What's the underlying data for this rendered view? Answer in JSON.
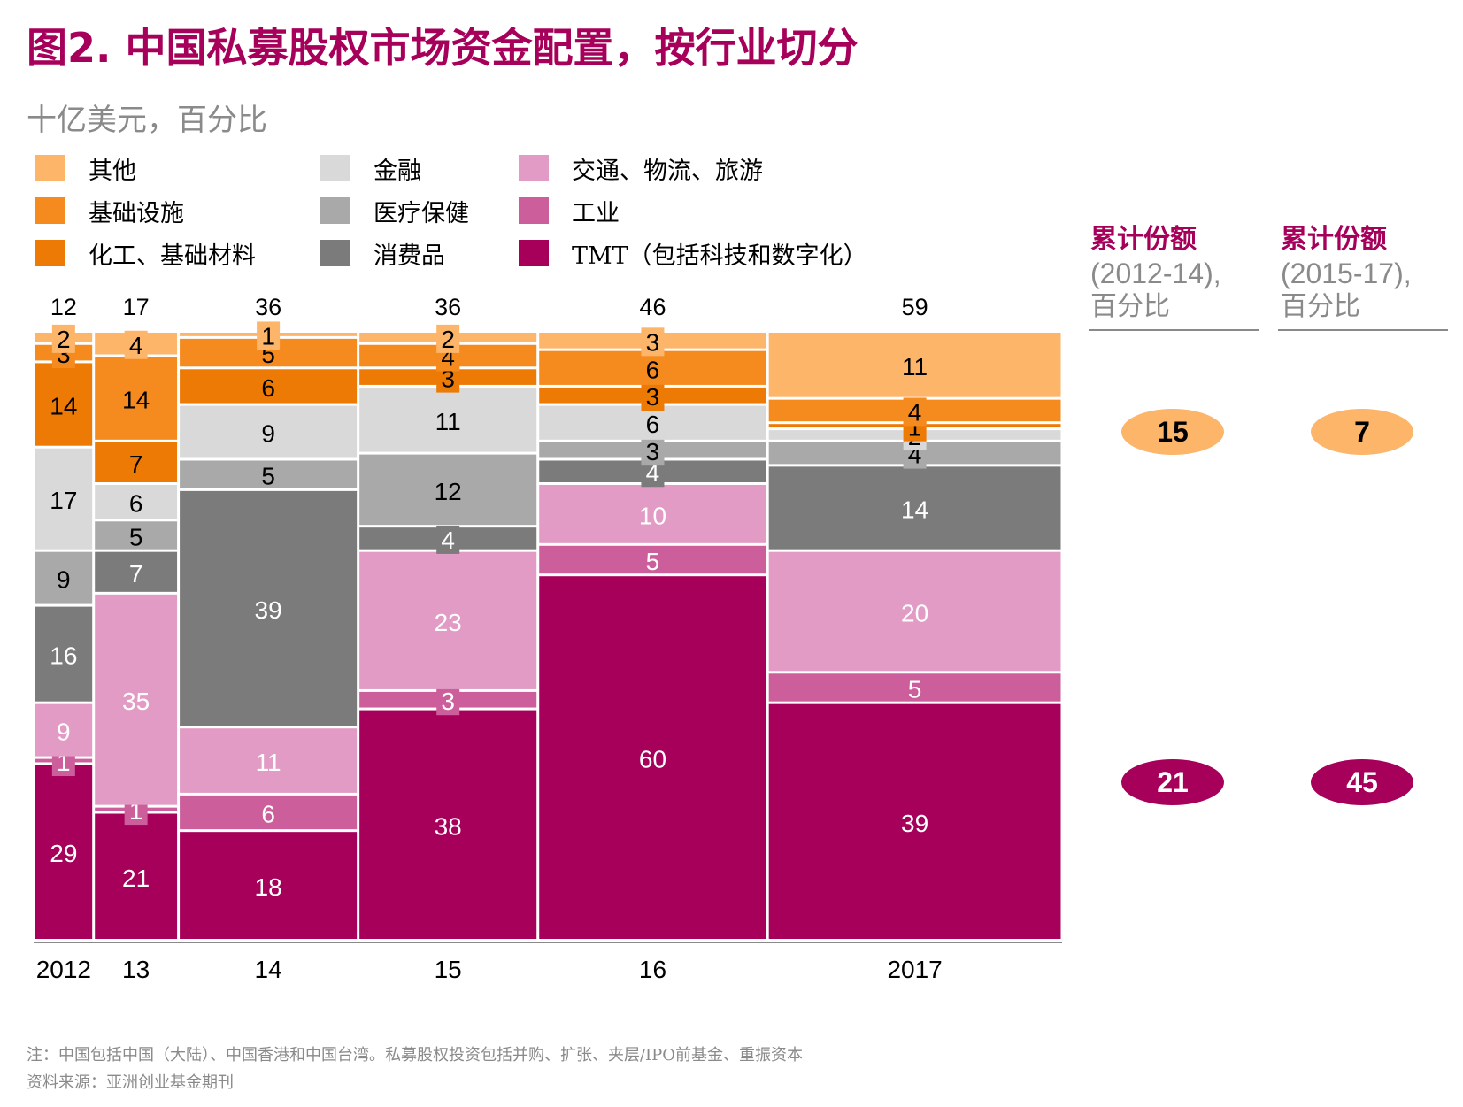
{
  "title": "图2. 中国私募股权市场资金配置，按行业切分",
  "subtitle": "十亿美元，百分比",
  "colors": {
    "other": "#fdb56a",
    "infrastructure": "#f58a1f",
    "chemicals": "#ec7a05",
    "finance": "#d9d9d9",
    "healthcare": "#a9a9a9",
    "consumer": "#7b7b7b",
    "transport": "#e19bc4",
    "industrial": "#cc5e9b",
    "tmt": "#a6005b"
  },
  "legend": [
    {
      "key": "other",
      "label": "其他"
    },
    {
      "key": "infrastructure",
      "label": "基础设施"
    },
    {
      "key": "chemicals",
      "label": "化工、基础材料"
    },
    {
      "key": "finance",
      "label": "金融"
    },
    {
      "key": "healthcare",
      "label": "医疗保健"
    },
    {
      "key": "consumer",
      "label": "消费品"
    },
    {
      "key": "transport",
      "label": "交通、物流、旅游"
    },
    {
      "key": "industrial",
      "label": "工业"
    },
    {
      "key": "tmt",
      "label": "TMT（包括科技和数字化）"
    }
  ],
  "chart_data": {
    "type": "bar",
    "variant": "marimekko (100% stacked, column width proportional to total)",
    "categories": [
      "2012",
      "13",
      "14",
      "15",
      "16",
      "2017"
    ],
    "totals": [
      12,
      17,
      36,
      36,
      46,
      59
    ],
    "series_order_bottom_to_top": [
      "tmt",
      "industrial",
      "transport",
      "consumer",
      "healthcare",
      "finance",
      "chemicals",
      "infrastructure",
      "other"
    ],
    "series": [
      {
        "key": "tmt",
        "name": "TMT（包括科技和数字化）",
        "values": [
          29,
          21,
          18,
          38,
          60,
          39
        ]
      },
      {
        "key": "industrial",
        "name": "工业",
        "values": [
          1,
          1,
          6,
          3,
          5,
          5
        ]
      },
      {
        "key": "transport",
        "name": "交通、物流、旅游",
        "values": [
          9,
          35,
          11,
          23,
          10,
          20
        ]
      },
      {
        "key": "consumer",
        "name": "消费品",
        "values": [
          16,
          7,
          39,
          4,
          4,
          14
        ]
      },
      {
        "key": "healthcare",
        "name": "医疗保健",
        "values": [
          9,
          5,
          5,
          12,
          3,
          4
        ]
      },
      {
        "key": "finance",
        "name": "金融",
        "values": [
          17,
          6,
          9,
          11,
          6,
          2
        ]
      },
      {
        "key": "chemicals",
        "name": "化工、基础材料",
        "values": [
          14,
          7,
          6,
          3,
          3,
          1
        ]
      },
      {
        "key": "infrastructure",
        "name": "基础设施",
        "values": [
          3,
          14,
          5,
          4,
          6,
          4
        ]
      },
      {
        "key": "other",
        "name": "其他",
        "values": [
          2,
          4,
          1,
          2,
          3,
          11
        ]
      }
    ],
    "ylim": [
      0,
      100
    ],
    "grid": false
  },
  "side": {
    "col1": {
      "head1": "累计份额",
      "head2": "(2012-14),",
      "head3": "百分比",
      "top": "15",
      "bottom": "21"
    },
    "col2": {
      "head1": "累计份额",
      "head2": "(2015-17),",
      "head3": "百分比",
      "top": "7",
      "bottom": "45"
    }
  },
  "notes": {
    "note": "注：中国包括中国（大陆）、中国香港和中国台湾。私募股权投资包括并购、扩张、夹层/IPO前基金、重振资本",
    "source": "资料来源：亚洲创业基金期刊"
  }
}
